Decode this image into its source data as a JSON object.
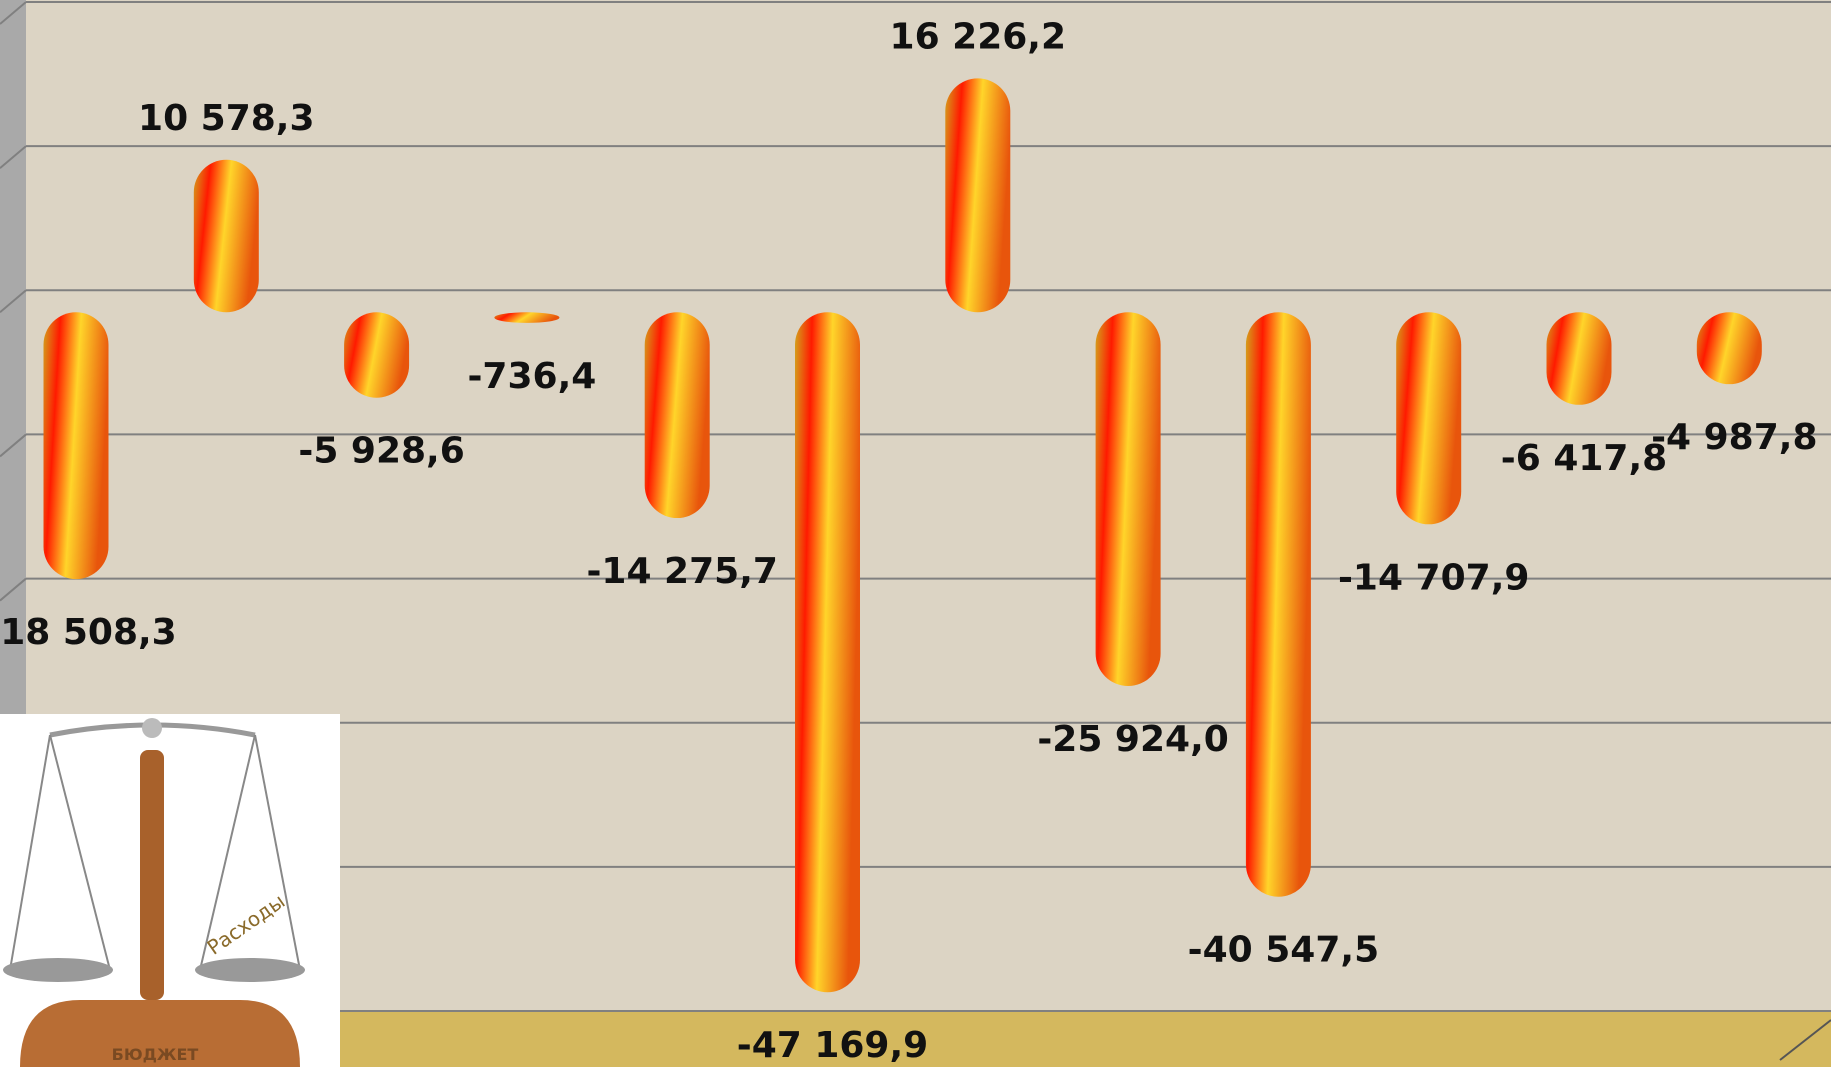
{
  "chart_data": {
    "type": "bar",
    "values": [
      -18508.3,
      10578.3,
      -5928.6,
      -736.4,
      -14275.7,
      -47169.9,
      16226.2,
      -25924.0,
      -40547.5,
      -14707.9,
      -6417.8,
      -4987.8
    ],
    "value_labels": [
      "-18 508,3",
      "10 578,3",
      "-5 928,6",
      "-736,4",
      "-14 275,7",
      "-47 169,9",
      "16 226,2",
      "-25 924,0",
      "-40 547,5",
      "-14 707,9",
      "-6 417,8",
      "-4 987,8"
    ],
    "ylim": [
      -50000,
      20000
    ],
    "yticks": [
      -50000,
      -40000,
      -30000,
      -20000,
      -10000,
      0,
      10000,
      20000
    ],
    "grid": true,
    "annotations": [
      "БЮДЖЕТ",
      "Расходы"
    ]
  }
}
